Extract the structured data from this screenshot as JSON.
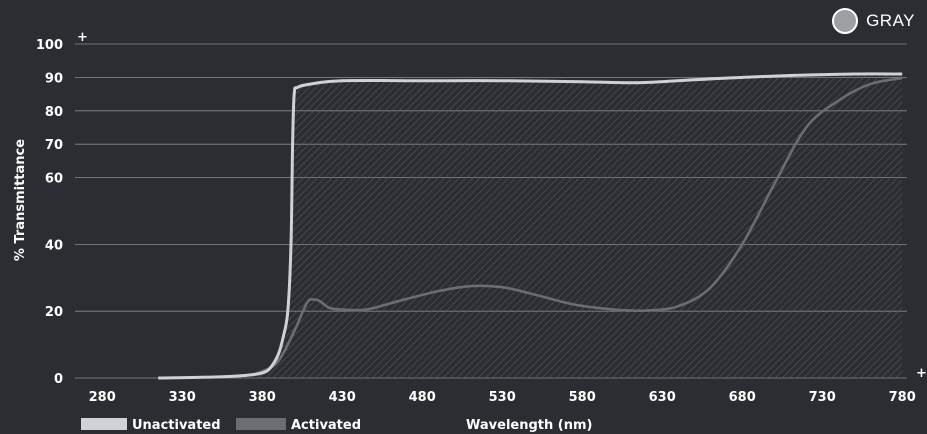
{
  "badge": {
    "label": "GRAY",
    "color": "#9d9fa2"
  },
  "chart_data": {
    "type": "line",
    "title": "",
    "xlabel": "Wavelength (nm)",
    "ylabel": "% Transmittance",
    "xlim": [
      263,
      783
    ],
    "ylim": [
      0,
      100
    ],
    "x_ticks": [
      280,
      330,
      380,
      430,
      480,
      530,
      580,
      630,
      680,
      730,
      780
    ],
    "y_ticks": [
      0,
      20,
      40,
      60,
      70,
      80,
      90,
      100
    ],
    "grid": true,
    "legend_position": "bottom-left",
    "colors": {
      "background": "#2a2d31",
      "unactivated": "#cfd1d4",
      "activated": "#6b6d70",
      "grid": "#8a8c8f"
    },
    "series": [
      {
        "name": "Unactivated",
        "color": "#cfd1d4",
        "x": [
          315,
          350,
          370,
          380,
          385,
          390,
          393,
          396,
          398,
          399,
          400,
          402,
          410,
          430,
          480,
          530,
          580,
          615,
          650,
          700,
          750,
          780
        ],
        "y": [
          0,
          0.3,
          0.8,
          1.5,
          3,
          7,
          12,
          20,
          40,
          70,
          85,
          87,
          88,
          89,
          89,
          89,
          88.7,
          88.4,
          89.3,
          90.4,
          91,
          91
        ]
      },
      {
        "name": "Activated",
        "color": "#6b6d70",
        "x": [
          315,
          350,
          370,
          380,
          390,
          400,
          408,
          412,
          416,
          422,
          430,
          445,
          465,
          490,
          510,
          530,
          550,
          575,
          600,
          620,
          640,
          660,
          680,
          700,
          720,
          740,
          760,
          780
        ],
        "y": [
          0,
          0.3,
          0.8,
          2,
          5,
          14,
          22.5,
          23.5,
          23,
          21,
          20.5,
          20.5,
          23,
          26,
          27.5,
          27.2,
          25,
          22,
          20.5,
          20.2,
          21.5,
          27,
          40,
          58,
          75,
          83,
          88,
          89.8
        ]
      }
    ]
  }
}
